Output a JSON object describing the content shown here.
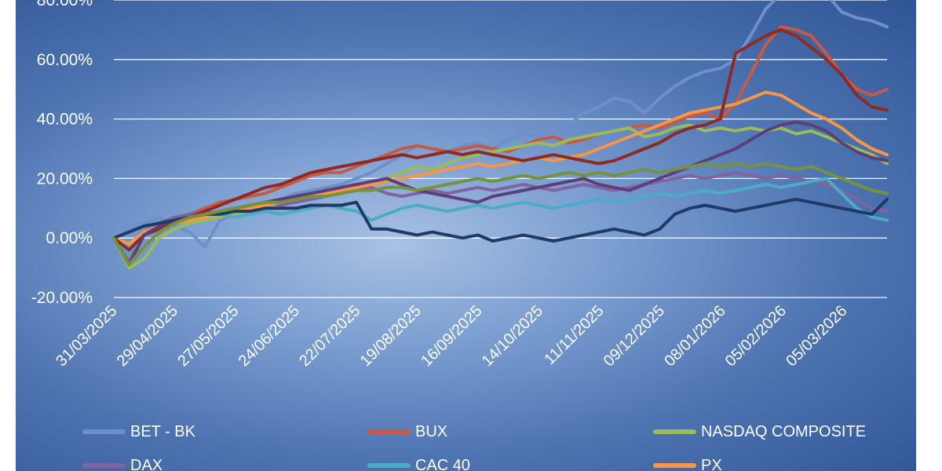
{
  "chart_data": {
    "type": "line",
    "title": "",
    "xlabel": "",
    "ylabel": "",
    "ylim": [
      -0.2,
      0.8
    ],
    "yticks": [
      "80.00%",
      "60.00%",
      "40.00%",
      "20.00%",
      "0.00%",
      "-20.00%"
    ],
    "x_tick_labels": [
      "31/03/2025",
      "29/04/2025",
      "27/05/2025",
      "24/06/2025",
      "22/07/2025",
      "19/08/2025",
      "16/09/2025",
      "14/10/2025",
      "11/11/2025",
      "09/12/2025",
      "08/01/2026",
      "05/02/2026",
      "05/03/2026"
    ],
    "grid": "horizontal",
    "legend_position": "bottom",
    "x": [
      "31/03/2025",
      "07/04/2025",
      "14/04/2025",
      "21/04/2025",
      "29/04/2025",
      "06/05/2025",
      "13/05/2025",
      "20/05/2025",
      "27/05/2025",
      "03/06/2025",
      "10/06/2025",
      "17/06/2025",
      "24/06/2025",
      "01/07/2025",
      "08/07/2025",
      "15/07/2025",
      "22/07/2025",
      "29/07/2025",
      "05/08/2025",
      "12/08/2025",
      "19/08/2025",
      "26/08/2025",
      "02/09/2025",
      "09/09/2025",
      "16/09/2025",
      "23/09/2025",
      "30/09/2025",
      "07/10/2025",
      "14/10/2025",
      "21/10/2025",
      "28/10/2025",
      "04/11/2025",
      "11/11/2025",
      "18/11/2025",
      "25/11/2025",
      "02/12/2025",
      "09/12/2025",
      "16/12/2025",
      "23/12/2025",
      "30/12/2025",
      "08/01/2026",
      "15/01/2026",
      "22/01/2026",
      "29/01/2026",
      "05/02/2026",
      "12/02/2026",
      "19/02/2026",
      "26/02/2026",
      "05/03/2026",
      "12/03/2026",
      "19/03/2026",
      "26/03/2026"
    ],
    "series": [
      {
        "name": "BET - BK",
        "color": "#6f8fcb",
        "values": [
          0,
          0.03,
          0.05,
          0.07,
          0.04,
          0.02,
          -0.03,
          0.06,
          0.08,
          0.1,
          0.12,
          0.13,
          0.15,
          0.16,
          0.17,
          0.18,
          0.2,
          0.22,
          0.25,
          0.28,
          0.31,
          0.3,
          0.29,
          0.31,
          0.32,
          0.3,
          0.33,
          0.35,
          0.34,
          0.36,
          0.38,
          0.42,
          0.44,
          0.47,
          0.46,
          0.42,
          0.47,
          0.51,
          0.54,
          0.56,
          0.57,
          0.6,
          0.68,
          0.77,
          0.82,
          0.83,
          0.85,
          0.82,
          0.76,
          0.74,
          0.73,
          0.71
        ]
      },
      {
        "name": "BUX",
        "color": "#c65a45",
        "values": [
          0,
          -0.05,
          0.02,
          0.05,
          0.06,
          0.08,
          0.1,
          0.12,
          0.13,
          0.14,
          0.15,
          0.17,
          0.19,
          0.21,
          0.22,
          0.22,
          0.24,
          0.26,
          0.28,
          0.3,
          0.31,
          0.3,
          0.29,
          0.3,
          0.31,
          0.3,
          0.29,
          0.31,
          0.33,
          0.34,
          0.32,
          0.33,
          0.35,
          0.36,
          0.37,
          0.38,
          0.37,
          0.39,
          0.41,
          0.42,
          0.4,
          0.45,
          0.55,
          0.65,
          0.71,
          0.7,
          0.68,
          0.62,
          0.55,
          0.5,
          0.48,
          0.5
        ]
      },
      {
        "name": "NASDAQ COMPOSITE",
        "color": "#9bbb59",
        "values": [
          0,
          -0.1,
          -0.07,
          0.0,
          0.03,
          0.05,
          0.06,
          0.07,
          0.08,
          0.09,
          0.11,
          0.12,
          0.13,
          0.14,
          0.15,
          0.16,
          0.17,
          0.18,
          0.2,
          0.22,
          0.24,
          0.23,
          0.25,
          0.27,
          0.28,
          0.29,
          0.3,
          0.31,
          0.32,
          0.31,
          0.33,
          0.34,
          0.35,
          0.36,
          0.37,
          0.34,
          0.35,
          0.37,
          0.38,
          0.36,
          0.37,
          0.36,
          0.37,
          0.36,
          0.37,
          0.35,
          0.36,
          0.34,
          0.32,
          0.3,
          0.28,
          0.25
        ]
      },
      {
        "name": "DAX",
        "color": "#8064a2",
        "values": [
          0,
          -0.08,
          0.02,
          0.05,
          0.07,
          0.08,
          0.09,
          0.08,
          0.1,
          0.11,
          0.12,
          0.11,
          0.12,
          0.13,
          0.14,
          0.15,
          0.16,
          0.17,
          0.15,
          0.14,
          0.15,
          0.16,
          0.15,
          0.16,
          0.17,
          0.16,
          0.17,
          0.18,
          0.17,
          0.16,
          0.17,
          0.18,
          0.17,
          0.16,
          0.17,
          0.18,
          0.19,
          0.2,
          0.21,
          0.2,
          0.21,
          0.22,
          0.21,
          0.2,
          0.21,
          0.2,
          0.19,
          0.18,
          0.16,
          0.13,
          0.1,
          0.09
        ]
      },
      {
        "name": "CAC 40",
        "color": "#4bacc6",
        "values": [
          0,
          -0.05,
          0.01,
          0.04,
          0.05,
          0.06,
          0.07,
          0.08,
          0.07,
          0.08,
          0.09,
          0.08,
          0.09,
          0.1,
          0.11,
          0.1,
          0.09,
          0.06,
          0.08,
          0.1,
          0.11,
          0.1,
          0.09,
          0.1,
          0.11,
          0.1,
          0.11,
          0.12,
          0.11,
          0.1,
          0.11,
          0.12,
          0.13,
          0.12,
          0.13,
          0.14,
          0.15,
          0.14,
          0.15,
          0.16,
          0.15,
          0.16,
          0.17,
          0.18,
          0.17,
          0.18,
          0.19,
          0.2,
          0.15,
          0.1,
          0.07,
          0.06
        ]
      },
      {
        "name": "PX",
        "color": "#f79646",
        "values": [
          0,
          -0.02,
          0.02,
          0.04,
          0.05,
          0.06,
          0.07,
          0.08,
          0.09,
          0.1,
          0.11,
          0.12,
          0.13,
          0.14,
          0.15,
          0.16,
          0.17,
          0.18,
          0.19,
          0.2,
          0.21,
          0.22,
          0.23,
          0.24,
          0.25,
          0.24,
          0.25,
          0.26,
          0.27,
          0.26,
          0.27,
          0.28,
          0.3,
          0.32,
          0.34,
          0.36,
          0.38,
          0.4,
          0.42,
          0.43,
          0.44,
          0.45,
          0.47,
          0.49,
          0.48,
          0.45,
          0.42,
          0.4,
          0.37,
          0.33,
          0.3,
          0.28
        ]
      },
      {
        "name": "",
        "color": "#8c2b24",
        "values": [
          0,
          -0.04,
          0.01,
          0.03,
          0.05,
          0.07,
          0.09,
          0.11,
          0.13,
          0.15,
          0.17,
          0.18,
          0.2,
          0.22,
          0.23,
          0.24,
          0.25,
          0.26,
          0.27,
          0.28,
          0.27,
          0.28,
          0.29,
          0.28,
          0.29,
          0.28,
          0.27,
          0.26,
          0.27,
          0.28,
          0.27,
          0.26,
          0.25,
          0.26,
          0.28,
          0.3,
          0.32,
          0.35,
          0.37,
          0.38,
          0.4,
          0.62,
          0.65,
          0.68,
          0.7,
          0.68,
          0.64,
          0.6,
          0.55,
          0.48,
          0.44,
          0.43
        ]
      },
      {
        "name": "",
        "color": "#5c3f7a",
        "values": [
          0,
          -0.09,
          0.01,
          0.04,
          0.06,
          0.07,
          0.08,
          0.09,
          0.1,
          0.11,
          0.12,
          0.13,
          0.14,
          0.15,
          0.16,
          0.17,
          0.18,
          0.19,
          0.2,
          0.18,
          0.16,
          0.15,
          0.14,
          0.13,
          0.12,
          0.14,
          0.15,
          0.16,
          0.17,
          0.18,
          0.19,
          0.2,
          0.18,
          0.17,
          0.16,
          0.18,
          0.2,
          0.22,
          0.24,
          0.26,
          0.28,
          0.3,
          0.33,
          0.36,
          0.38,
          0.39,
          0.38,
          0.36,
          0.32,
          0.29,
          0.27,
          0.26
        ]
      },
      {
        "name": "",
        "color": "#1f3a68",
        "values": [
          0,
          0.02,
          0.04,
          0.05,
          0.06,
          0.07,
          0.08,
          0.08,
          0.09,
          0.09,
          0.1,
          0.1,
          0.1,
          0.11,
          0.11,
          0.11,
          0.12,
          0.03,
          0.03,
          0.02,
          0.01,
          0.02,
          0.01,
          0.0,
          0.01,
          -0.01,
          0.0,
          0.01,
          0.0,
          -0.01,
          0.0,
          0.01,
          0.02,
          0.03,
          0.02,
          0.01,
          0.03,
          0.08,
          0.1,
          0.11,
          0.1,
          0.09,
          0.1,
          0.11,
          0.12,
          0.13,
          0.12,
          0.11,
          0.1,
          0.09,
          0.08,
          0.13
        ]
      },
      {
        "name": "",
        "color": "#76923c",
        "values": [
          0,
          -0.09,
          -0.03,
          0.02,
          0.05,
          0.07,
          0.08,
          0.09,
          0.1,
          0.11,
          0.12,
          0.12,
          0.13,
          0.14,
          0.14,
          0.15,
          0.16,
          0.16,
          0.17,
          0.17,
          0.16,
          0.17,
          0.18,
          0.19,
          0.2,
          0.19,
          0.2,
          0.21,
          0.2,
          0.21,
          0.22,
          0.21,
          0.22,
          0.21,
          0.22,
          0.23,
          0.22,
          0.23,
          0.24,
          0.25,
          0.24,
          0.25,
          0.24,
          0.25,
          0.24,
          0.23,
          0.24,
          0.22,
          0.2,
          0.18,
          0.16,
          0.15
        ]
      }
    ],
    "legend": [
      {
        "label": "BET - BK",
        "color": "#6f8fcb"
      },
      {
        "label": "BUX",
        "color": "#c65a45"
      },
      {
        "label": "NASDAQ COMPOSITE",
        "color": "#9bbb59"
      },
      {
        "label": "DAX",
        "color": "#8064a2"
      },
      {
        "label": "CAC 40",
        "color": "#4bacc6"
      },
      {
        "label": "PX",
        "color": "#f79646"
      }
    ]
  }
}
